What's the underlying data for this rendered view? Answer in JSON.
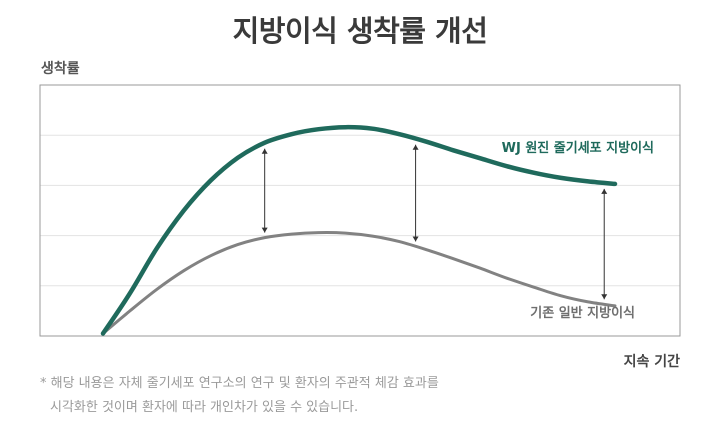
{
  "page": {
    "title": "지방이식 생착률 개선",
    "note_line1": "* 해당 내용은 자체 줄기세포 연구소의 연구 및 환자의 주관적 체감 효과를",
    "note_line2": "시각화한 것이며 환자에 따라 개인차가 있을 수 있습니다."
  },
  "chart_data": {
    "type": "line",
    "title": "지방이식 생착률 개선",
    "xlabel": "지속 기간",
    "ylabel": "생착률",
    "ylim": [
      0,
      5
    ],
    "xlim": [
      0,
      10
    ],
    "grid": true,
    "colors": {
      "upper": "#1f6a5c",
      "lower": "#828282",
      "grid": "#e3e3e3",
      "axis": "#999999",
      "arrow": "#333333"
    },
    "series": [
      {
        "name": "WJ 원진 줄기세포 지방이식",
        "x": [
          0,
          0.5,
          1,
          1.5,
          2,
          2.5,
          3,
          3.5,
          4,
          4.5,
          5,
          5.5,
          6,
          6.5,
          7,
          7.5,
          8,
          8.5,
          9,
          9.5
        ],
        "values": [
          0.05,
          0.85,
          1.75,
          2.5,
          3.1,
          3.55,
          3.85,
          4.02,
          4.12,
          4.16,
          4.13,
          4.02,
          3.87,
          3.7,
          3.54,
          3.38,
          3.25,
          3.15,
          3.08,
          3.03
        ]
      },
      {
        "name": "기존 일반 지방이식",
        "x": [
          0,
          0.5,
          1,
          1.5,
          2,
          2.5,
          3,
          3.5,
          4,
          4.5,
          5,
          5.5,
          6,
          6.5,
          7,
          7.5,
          8,
          8.5,
          9,
          9.5
        ],
        "values": [
          0.05,
          0.5,
          0.93,
          1.3,
          1.6,
          1.82,
          1.96,
          2.03,
          2.06,
          2.05,
          1.99,
          1.88,
          1.72,
          1.54,
          1.35,
          1.15,
          0.97,
          0.8,
          0.68,
          0.6
        ]
      }
    ],
    "arrows_at_x": [
      3.0,
      5.8,
      9.3
    ]
  }
}
